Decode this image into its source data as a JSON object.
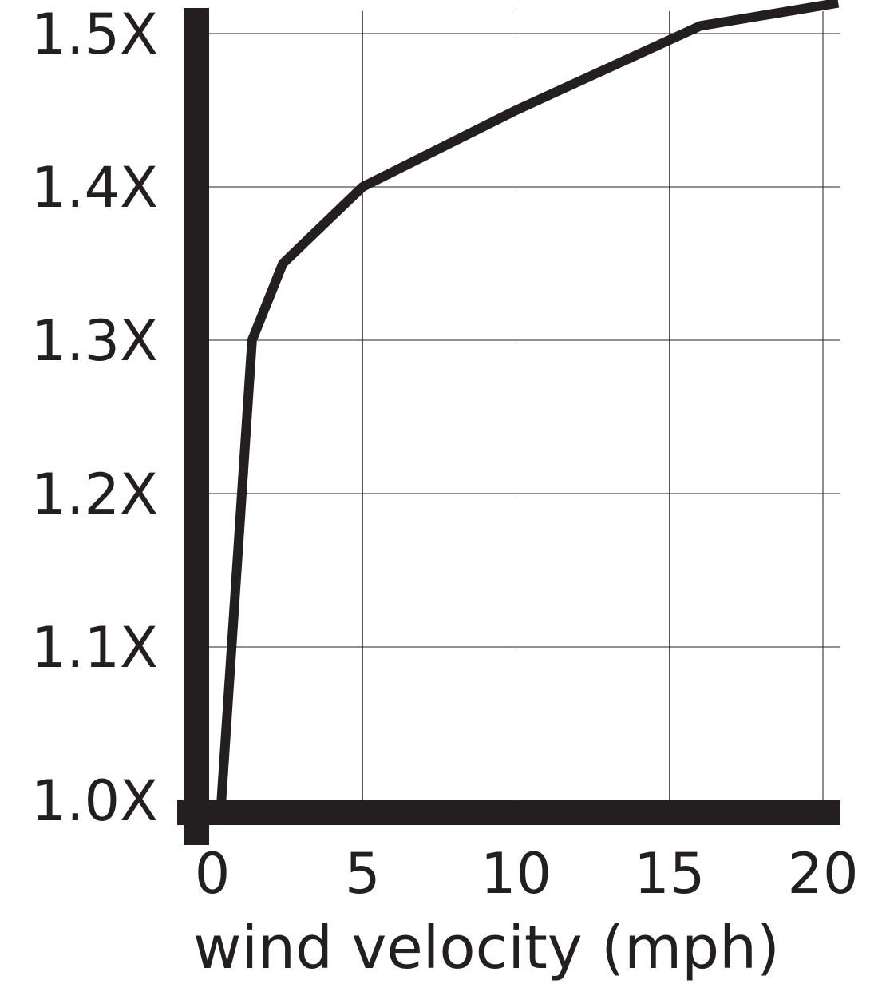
{
  "chart_data": {
    "type": "line",
    "title": "",
    "xlabel": "wind velocity (mph)",
    "ylabel": "",
    "xlim": [
      0,
      20
    ],
    "ylim": [
      1.0,
      1.5
    ],
    "x_ticks": [
      0,
      5,
      10,
      15,
      20
    ],
    "x_tick_labels": [
      "0",
      "5",
      "10",
      "15",
      "20"
    ],
    "y_ticks": [
      1.0,
      1.1,
      1.2,
      1.3,
      1.4,
      1.5
    ],
    "y_tick_labels": [
      "1.0X",
      "1.1X",
      "1.2X",
      "1.3X",
      "1.4X",
      "1.5X"
    ],
    "grid": true,
    "series": [
      {
        "x": [
          0.4,
          1.4,
          2.4,
          5,
          10,
          16,
          20.5
        ],
        "y": [
          1.0,
          1.3,
          1.35,
          1.4,
          1.45,
          1.505,
          1.52
        ]
      }
    ],
    "colors": {
      "line": "#231f20",
      "axis": "#231f20",
      "grid": "#231f20",
      "text": "#231f20",
      "background": "#ffffff"
    }
  }
}
